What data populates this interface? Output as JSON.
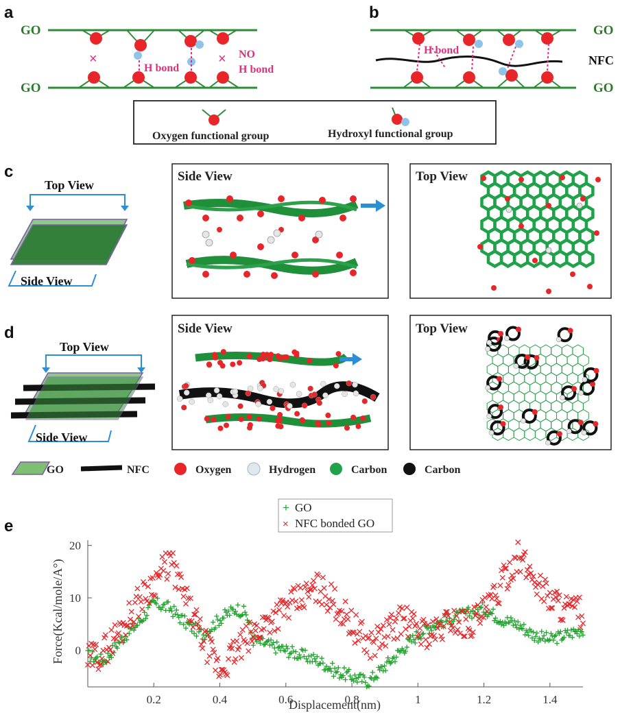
{
  "panels": {
    "a": {
      "label": "a",
      "top_label": "GO",
      "bottom_label": "GO",
      "hbond_label": "H bond",
      "no_label": "NO",
      "no_hbond_label": "H bond"
    },
    "b": {
      "label": "b",
      "top_label": "GO",
      "mid_label": "NFC",
      "bottom_label": "GO",
      "hbond_label": "H bond"
    },
    "ab_legend": {
      "oxygen_group": "Oxygen functional group",
      "hydroxyl_group": "Hydroxyl functional group"
    },
    "c": {
      "label": "c",
      "schematic_top": "Top View",
      "schematic_side": "Side View",
      "side_title": "Side View",
      "top_title": "Top View"
    },
    "d": {
      "label": "d",
      "schematic_top": "Top View",
      "schematic_side": "Side View",
      "side_title": "Side View",
      "top_title": "Top View"
    },
    "atom_legend": {
      "go": "GO",
      "nfc": "NFC",
      "oxygen": "Oxygen",
      "hydrogen": "Hydrogen",
      "carbon_green": "Carbon",
      "carbon_black": "Carbon"
    },
    "e": {
      "label": "e"
    }
  },
  "colors": {
    "go_green": "#2e8b3a",
    "oxygen_red": "#e8262a",
    "hydrogen_blue": "#8ec3ea",
    "hbond_pink": "#e0307a",
    "arrow_blue": "#2c8fd6",
    "nfc_red": "#e8262a"
  },
  "chart_data": {
    "type": "scatter",
    "xlabel": "Displacement(nm)",
    "ylabel": "Force(Kcal/mole/A°)",
    "xlim": [
      0,
      1.5
    ],
    "ylim": [
      -7,
      21
    ],
    "x_ticks": [
      "0.2",
      "0.4",
      "0.6",
      "0.8",
      "1",
      "1.2",
      "1.4"
    ],
    "x_tick_values": [
      0.2,
      0.4,
      0.6,
      0.8,
      1.0,
      1.2,
      1.4
    ],
    "y_ticks": [
      "0",
      "10",
      "20"
    ],
    "y_tick_values": [
      0,
      10,
      20
    ],
    "legend_position": "top-center",
    "series": [
      {
        "name": "GO",
        "marker": "+",
        "color": "#1fa32c",
        "points": [
          [
            0.0,
            -1
          ],
          [
            0.05,
            -2
          ],
          [
            0.1,
            2
          ],
          [
            0.15,
            5
          ],
          [
            0.2,
            9
          ],
          [
            0.25,
            8
          ],
          [
            0.3,
            5
          ],
          [
            0.35,
            3
          ],
          [
            0.4,
            6
          ],
          [
            0.45,
            8
          ],
          [
            0.48,
            7
          ],
          [
            0.5,
            2
          ],
          [
            0.55,
            1
          ],
          [
            0.6,
            0
          ],
          [
            0.65,
            -1
          ],
          [
            0.7,
            -2
          ],
          [
            0.75,
            -4
          ],
          [
            0.8,
            -5
          ],
          [
            0.85,
            -6
          ],
          [
            0.9,
            -3
          ],
          [
            0.95,
            0
          ],
          [
            1.0,
            3
          ],
          [
            1.05,
            5
          ],
          [
            1.1,
            6
          ],
          [
            1.15,
            7
          ],
          [
            1.2,
            8
          ],
          [
            1.25,
            6
          ],
          [
            1.3,
            5
          ],
          [
            1.35,
            3
          ],
          [
            1.4,
            2
          ],
          [
            1.45,
            3
          ],
          [
            1.5,
            4
          ]
        ]
      },
      {
        "name": "NFC bonded GO",
        "marker": "x",
        "color": "#e8262a",
        "points": [
          [
            0.0,
            -2
          ],
          [
            0.05,
            0
          ],
          [
            0.1,
            4
          ],
          [
            0.15,
            9
          ],
          [
            0.2,
            13
          ],
          [
            0.25,
            17
          ],
          [
            0.3,
            9
          ],
          [
            0.35,
            2
          ],
          [
            0.4,
            -4
          ],
          [
            0.45,
            0
          ],
          [
            0.5,
            3
          ],
          [
            0.55,
            6
          ],
          [
            0.6,
            8
          ],
          [
            0.65,
            10
          ],
          [
            0.7,
            12
          ],
          [
            0.75,
            9
          ],
          [
            0.8,
            5
          ],
          [
            0.85,
            1
          ],
          [
            0.9,
            3
          ],
          [
            0.95,
            6
          ],
          [
            1.0,
            4
          ],
          [
            1.05,
            3
          ],
          [
            1.1,
            6
          ],
          [
            1.15,
            5
          ],
          [
            1.2,
            7
          ],
          [
            1.25,
            12
          ],
          [
            1.3,
            18
          ],
          [
            1.35,
            14
          ],
          [
            1.4,
            10
          ],
          [
            1.45,
            8
          ],
          [
            1.5,
            7
          ]
        ]
      }
    ]
  }
}
